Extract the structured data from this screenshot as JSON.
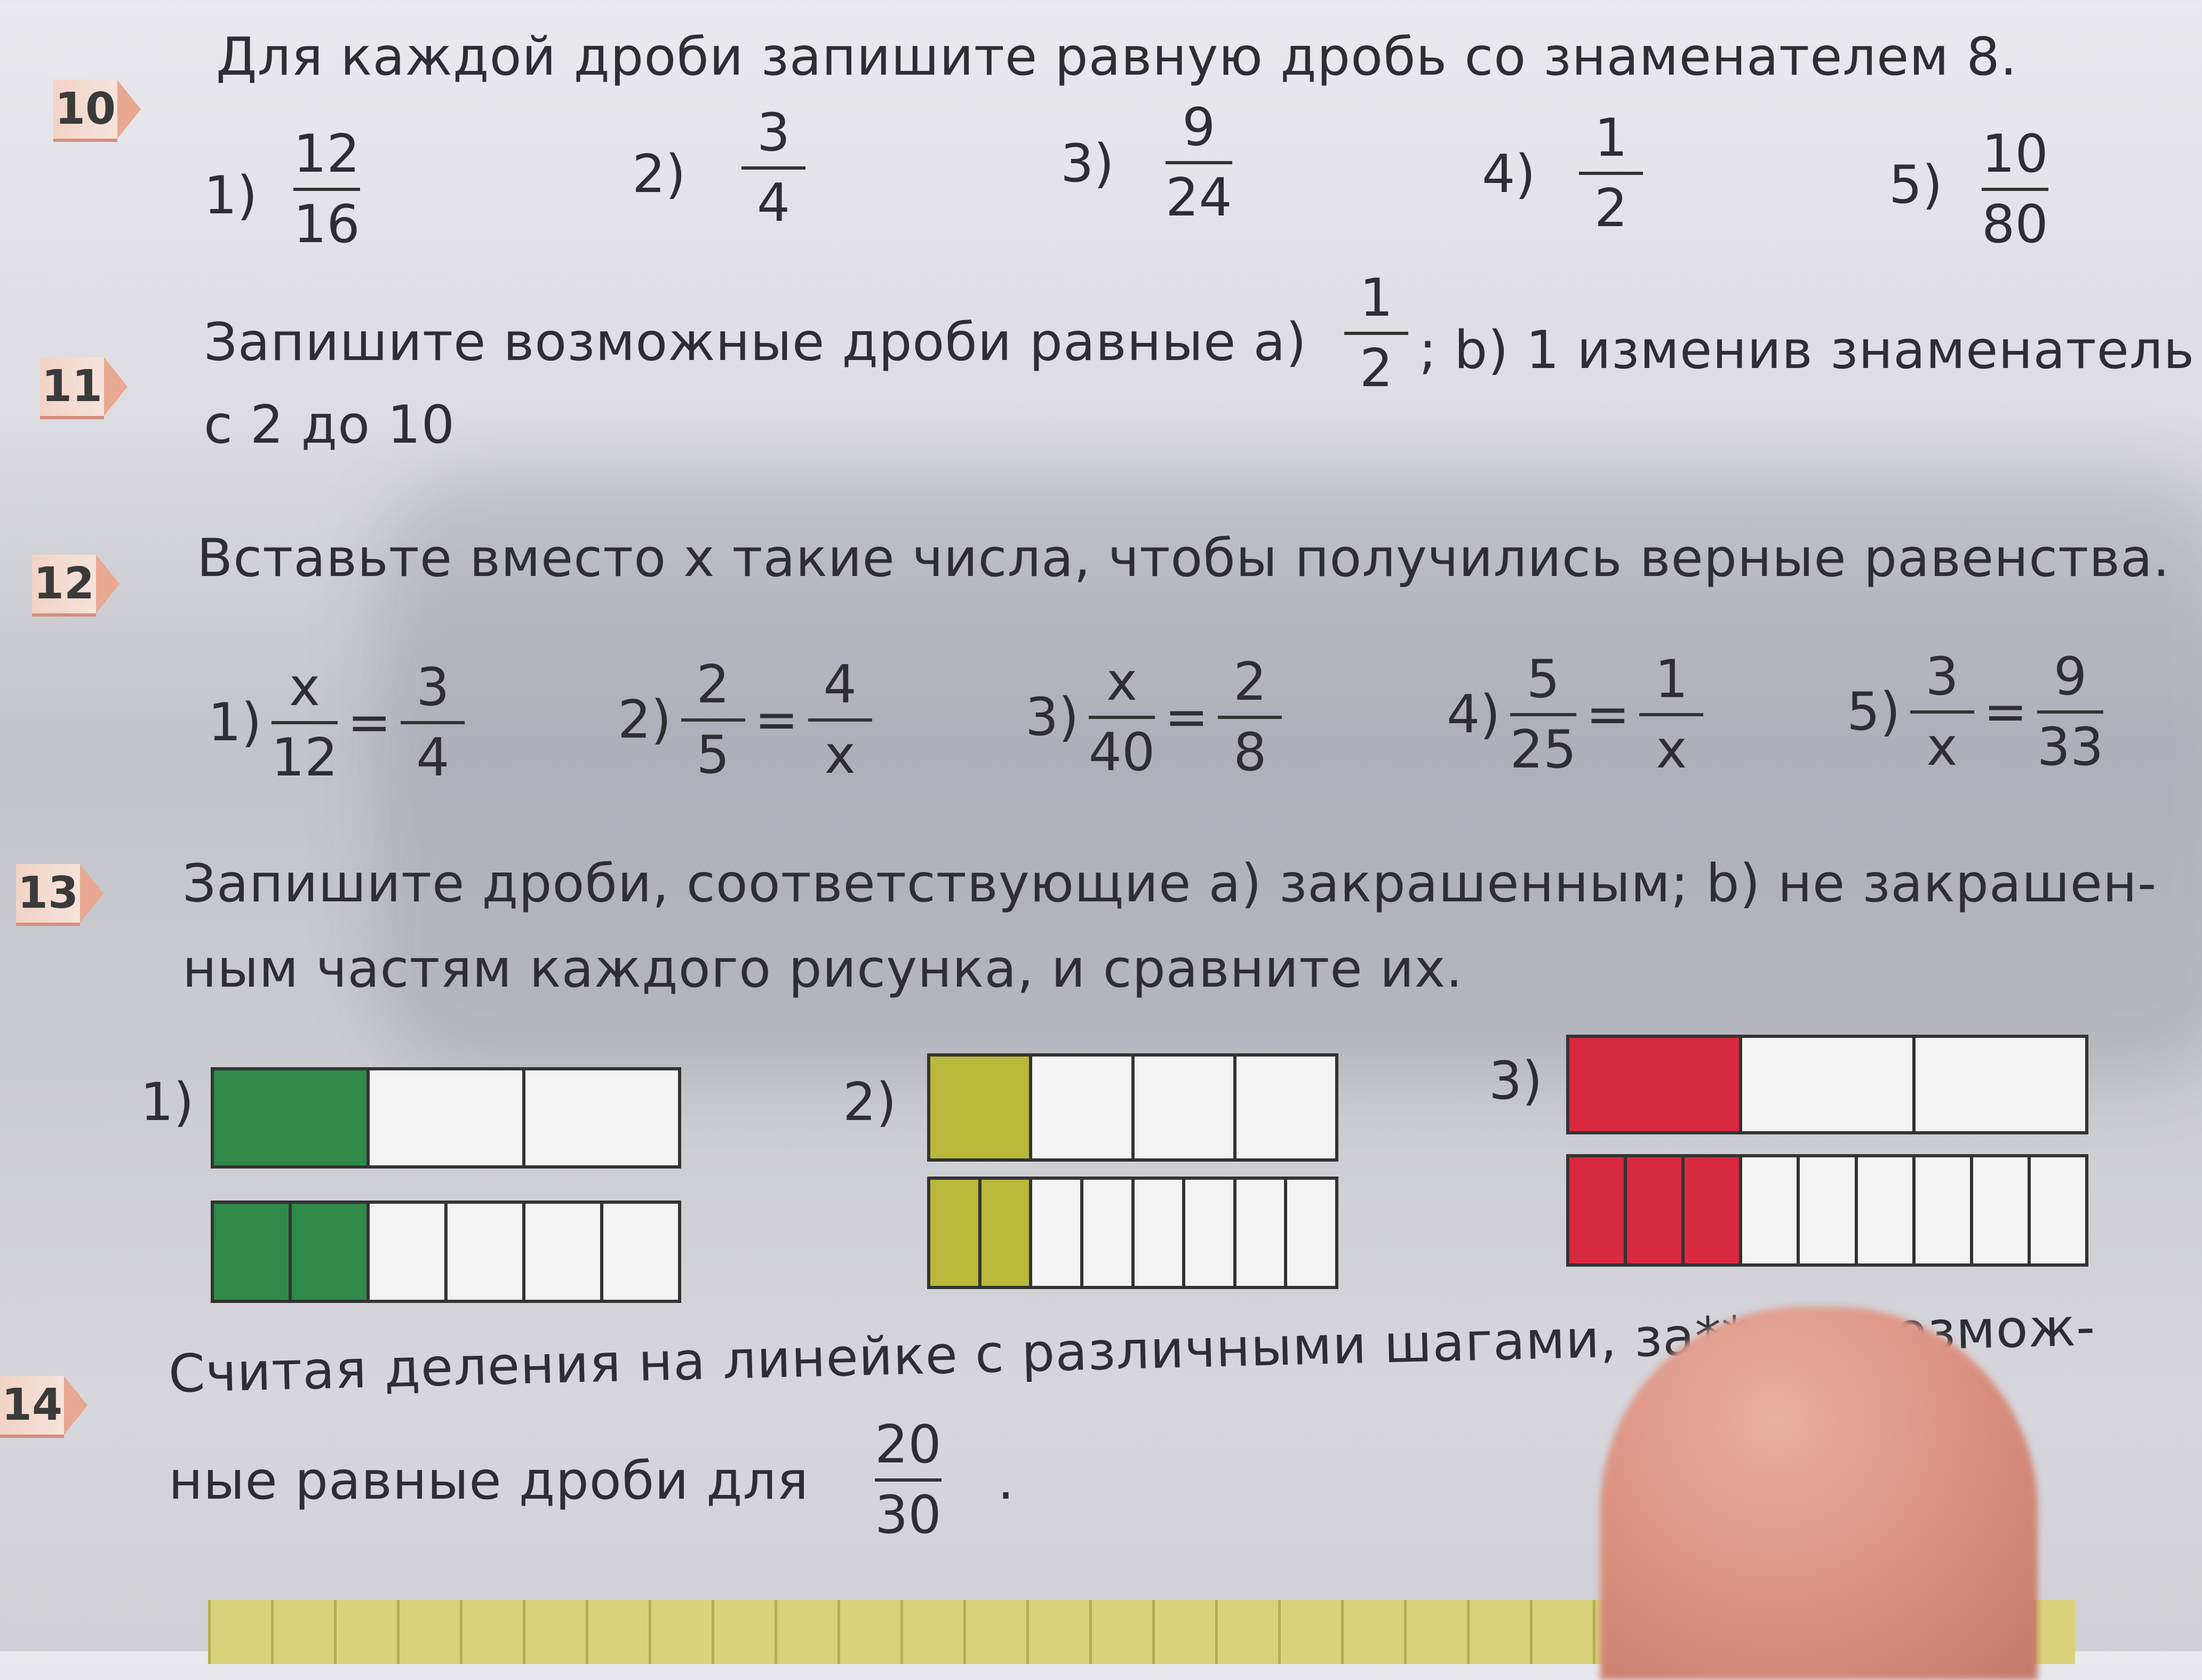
{
  "p10": {
    "num": "10",
    "text": "Для каждой дроби запишите равную дробь со знаменателем 8.",
    "items": [
      {
        "label": "1)",
        "n": "12",
        "d": "16"
      },
      {
        "label": "2)",
        "n": "3",
        "d": "4"
      },
      {
        "label": "3)",
        "n": "9",
        "d": "24"
      },
      {
        "label": "4)",
        "n": "1",
        "d": "2"
      },
      {
        "label": "5)",
        "n": "10",
        "d": "80"
      }
    ]
  },
  "p11": {
    "num": "11",
    "text_a": "Запишите возможные дроби  равные а)",
    "frac_n": "1",
    "frac_d": "2",
    "text_b": "; b) 1  изменив знаменатель",
    "line2": "с 2 до 10"
  },
  "p12": {
    "num": "12",
    "text": "Вставьте вместо  x такие  числа, чтобы получились верные равенства.",
    "items": [
      {
        "label": "1)",
        "n1": "x",
        "d1": "12",
        "n2": "3",
        "d2": "4"
      },
      {
        "label": "2)",
        "n1": "2",
        "d1": "5",
        "n2": "4",
        "d2": "x"
      },
      {
        "label": "3)",
        "n1": "x",
        "d1": "40",
        "n2": "2",
        "d2": "8"
      },
      {
        "label": "4)",
        "n1": "5",
        "d1": "25",
        "n2": "1",
        "d2": "x"
      },
      {
        "label": "5)",
        "n1": "3",
        "d1": "x",
        "n2": "9",
        "d2": "33"
      }
    ],
    "eq": "="
  },
  "p13": {
    "num": "13",
    "line1": "Запишите дроби, соответствующие а) закрашенным; b) не закрашен-",
    "line2": "ным  частям каждого рисунка, и сравните их.",
    "figures": [
      {
        "label": "1)",
        "color": "#2f8a4a",
        "top": {
          "parts": 3,
          "shaded": 1
        },
        "bottom": {
          "parts": 6,
          "shaded": 2
        }
      },
      {
        "label": "2)",
        "color": "#b9b83a",
        "top": {
          "parts": 4,
          "shaded": 1
        },
        "bottom": {
          "parts": 8,
          "shaded": 2
        }
      },
      {
        "label": "3)",
        "color": "#d8293f",
        "top": {
          "parts": 3,
          "shaded": 1
        },
        "bottom": {
          "parts": 9,
          "shaded": 3
        }
      }
    ]
  },
  "p14": {
    "num": "14",
    "line1": "Считая деления на линейке с различными шагами, за**ите возмож-",
    "line2": "ные равные дроби для",
    "frac_n": "20",
    "frac_d": "30",
    "end": "."
  }
}
